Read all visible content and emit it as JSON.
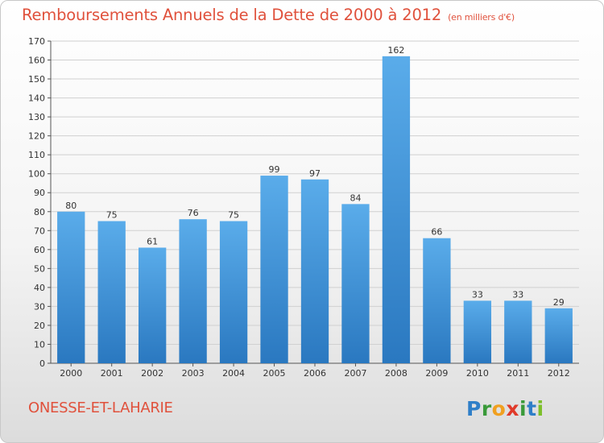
{
  "title": "Remboursements Annuels de la Dette de 2000 à 2012",
  "unit_note": "(en milliers d'€)",
  "place": "ONESSE-ET-LAHARIE",
  "brand": {
    "text": "Proxiti",
    "letters": [
      "P",
      "r",
      "o",
      "x",
      "i",
      "t",
      "i"
    ],
    "colors": [
      "#2f7fc8",
      "#3a9a3a",
      "#f0a020",
      "#e03a2a",
      "#3a9a3a",
      "#2f7fc8",
      "#7cbf2a"
    ]
  },
  "colors": {
    "bar": "#3f90d8",
    "bar_light": "#5aacea",
    "bar_dark": "#2a78c0",
    "accent": "#e0513c",
    "grid": "#d0d0d0"
  },
  "chart_data": {
    "type": "bar",
    "categories": [
      "2000",
      "2001",
      "2002",
      "2003",
      "2004",
      "2005",
      "2006",
      "2007",
      "2008",
      "2009",
      "2010",
      "2011",
      "2012"
    ],
    "values": [
      80,
      75,
      61,
      76,
      75,
      99,
      97,
      84,
      162,
      66,
      33,
      33,
      29
    ],
    "ylim": [
      0,
      170
    ],
    "yticks": [
      0,
      10,
      20,
      30,
      40,
      50,
      60,
      70,
      80,
      90,
      100,
      110,
      120,
      130,
      140,
      150,
      160,
      170
    ],
    "grid": true
  }
}
